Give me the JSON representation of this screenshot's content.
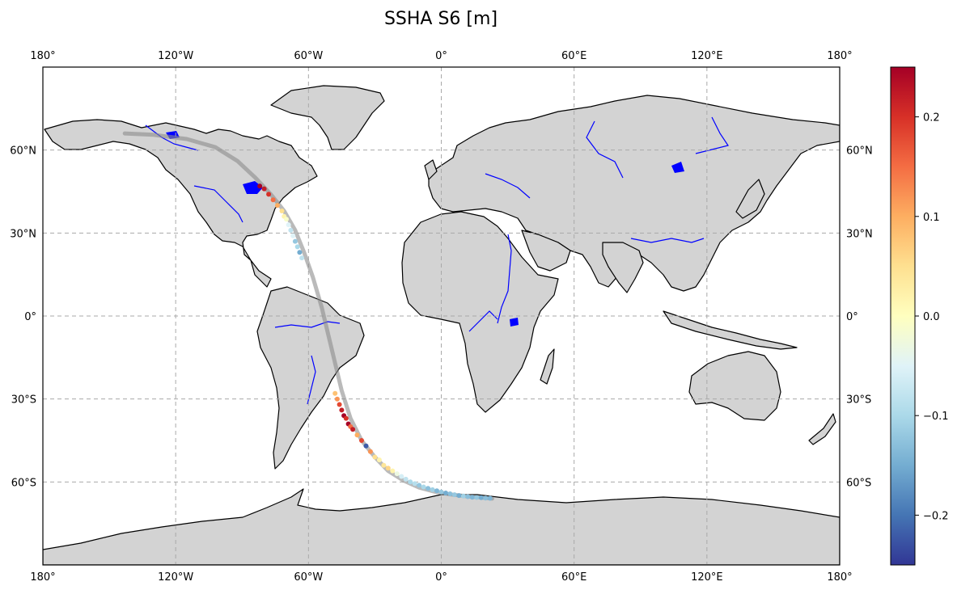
{
  "title": "SSHA S6 [m]",
  "chart_data": {
    "type": "scatter",
    "projection": "PlateCarree",
    "title": "SSHA S6 [m]",
    "xlim": [
      -180,
      180
    ],
    "ylim": [
      -90,
      90
    ],
    "grid": true,
    "x_ticks": [
      -180,
      -120,
      -60,
      0,
      60,
      120,
      180
    ],
    "x_tick_labels": [
      "180°",
      "120°W",
      "60°W",
      "0°",
      "60°E",
      "120°E",
      "180°"
    ],
    "y_ticks": [
      60,
      30,
      0,
      -30,
      -60
    ],
    "y_tick_labels": [
      "60°N",
      "30°N",
      "0°",
      "30°S",
      "60°S"
    ],
    "land_color": "#d3d3d3",
    "river_color": "#0000ff",
    "track_color": "#8c8c8c",
    "colormap": "RdYlBu_r",
    "colorbar": {
      "vmin": -0.25,
      "vmax": 0.25,
      "ticks": [
        -0.2,
        -0.1,
        0.0,
        0.1,
        0.2
      ],
      "tick_labels": [
        "−0.2",
        "−0.1",
        "0.0",
        "0.1",
        "0.2"
      ]
    },
    "track": {
      "lon": [
        -143,
        -130,
        -115,
        -102,
        -92,
        -84,
        -77,
        -71,
        -66,
        -62,
        -58,
        -54,
        -51,
        -48,
        -45,
        -41,
        -36,
        -30,
        -24,
        -17,
        -10,
        -3,
        4,
        12,
        18,
        23
      ],
      "lat": [
        66,
        65.5,
        64,
        61,
        56,
        50,
        44,
        38,
        31,
        23,
        14,
        3,
        -7,
        -17,
        -27,
        -37,
        -45,
        -51,
        -56,
        -59.5,
        -62,
        -63.5,
        -64.5,
        -65.2,
        -65.6,
        -66
      ]
    },
    "observations": {
      "lon": [
        -82,
        -80,
        -78,
        -76,
        -74,
        -72,
        -71,
        -70,
        -69,
        -68,
        -67,
        -66,
        -65,
        -64,
        -63,
        -48,
        -47,
        -46,
        -45,
        -44,
        -43,
        -42,
        -41,
        -40,
        -38,
        -36,
        -34,
        -32,
        -30,
        -28,
        -26,
        -24,
        -22,
        -20,
        -18,
        -16,
        -14,
        -12,
        -10,
        -8,
        -6,
        -4,
        -2,
        0,
        2,
        4,
        6,
        8,
        10,
        12,
        14,
        16,
        18,
        20,
        22
      ],
      "lat": [
        47,
        46,
        44,
        42,
        40,
        38,
        36,
        35,
        33,
        31,
        29,
        27,
        25,
        23,
        21,
        -28,
        -30,
        -32,
        -34,
        -36,
        -37,
        -39,
        -40,
        -41,
        -43,
        -45,
        -47,
        -49,
        -51,
        -52,
        -54,
        -55,
        -56,
        -57,
        -58,
        -59,
        -60,
        -60.6,
        -61.2,
        -61.8,
        -62.3,
        -62.8,
        -63.2,
        -63.6,
        -64,
        -64.3,
        -64.6,
        -64.9,
        -65.1,
        -65.3,
        -65.5,
        -65.6,
        -65.7,
        -65.8,
        -65.9
      ],
      "ssha": [
        0.25,
        0.22,
        0.2,
        0.15,
        0.1,
        0.05,
        0.02,
        -0.01,
        -0.05,
        -0.08,
        -0.05,
        -0.12,
        -0.1,
        -0.15,
        -0.08,
        0.08,
        0.12,
        0.18,
        0.22,
        0.25,
        0.2,
        0.25,
        0.15,
        0.22,
        0.1,
        0.18,
        -0.22,
        0.12,
        0.05,
        0.02,
        0.04,
        0.06,
        0.02,
        -0.03,
        -0.06,
        -0.08,
        -0.1,
        -0.09,
        -0.12,
        -0.1,
        -0.13,
        -0.11,
        -0.14,
        -0.12,
        -0.15,
        -0.13,
        -0.12,
        -0.15,
        -0.11,
        -0.13,
        -0.14,
        -0.12,
        -0.15,
        -0.13,
        -0.14
      ]
    }
  }
}
